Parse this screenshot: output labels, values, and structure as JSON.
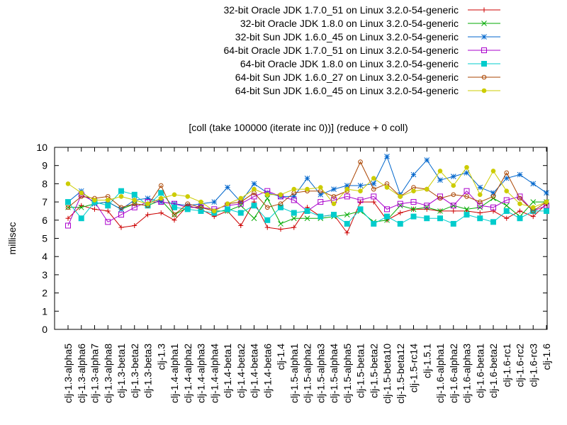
{
  "chart_data": {
    "type": "line",
    "title": "[coll (take 100000 (iterate inc 0))] (reduce + 0 coll)",
    "xlabel": "",
    "ylabel": "millisec",
    "ylim": [
      0,
      10
    ],
    "yticks": [
      "0",
      "1",
      "2",
      "3",
      "4",
      "5",
      "6",
      "7",
      "8",
      "9",
      "10"
    ],
    "grid": false,
    "legend_position": "top-right",
    "categories": [
      "clj-1.3-alpha5",
      "clj-1.3-alpha6",
      "clj-1.3-alpha7",
      "clj-1.3-alpha8",
      "clj-1.3-beta1",
      "clj-1.3-beta2",
      "clj-1.3-beta3",
      "clj-1.3",
      "clj-1.4-alpha1",
      "clj-1.4-alpha2",
      "clj-1.4-alpha3",
      "clj-1.4-alpha4",
      "clj-1.4-beta1",
      "clj-1.4-beta2",
      "clj-1.4-beta4",
      "clj-1.4-beta6",
      "clj-1.4",
      "clj-1.5-alpha1",
      "clj-1.5-alpha2",
      "clj-1.5-alpha3",
      "clj-1.5-alpha4",
      "clj-1.5-alpha5",
      "clj-1.5-beta1",
      "clj-1.5-beta2",
      "clj-1.5-beta10",
      "clj-1.5-beta12",
      "clj-1.5-rc14",
      "clj-1.5.1",
      "clj-1.6-alpha1",
      "clj-1.6-alpha2",
      "clj-1.6-alpha3",
      "clj-1.6-beta1",
      "clj-1.6-beta2",
      "clj-1.6-rc1",
      "clj-1.6-rc2",
      "clj-1.6-rc3",
      "clj-1.6"
    ],
    "series": [
      {
        "name": "32-bit Oracle JDK 1.7.0_51 on Linux 3.2.0-54-generic",
        "color": "#cc0000",
        "marker": "plus",
        "values": [
          6.1,
          6.8,
          6.6,
          6.5,
          5.6,
          5.7,
          6.3,
          6.4,
          6.0,
          6.8,
          6.6,
          6.2,
          6.5,
          5.7,
          7.0,
          5.6,
          5.5,
          5.6,
          6.7,
          6.2,
          6.3,
          5.3,
          7.0,
          7.0,
          6.0,
          6.4,
          6.6,
          6.6,
          6.5,
          6.5,
          6.5,
          6.4,
          6.5,
          6.1,
          6.5,
          6.2,
          6.9
        ]
      },
      {
        "name": "32-bit Oracle JDK 1.8.0 on Linux 3.2.0-54-generic",
        "color": "#00aa00",
        "marker": "cross",
        "values": [
          6.7,
          6.7,
          6.9,
          7.0,
          6.6,
          6.9,
          6.8,
          7.1,
          6.3,
          6.7,
          6.7,
          6.5,
          6.5,
          6.8,
          6.1,
          7.2,
          5.8,
          6.1,
          6.1,
          6.1,
          6.2,
          6.3,
          6.5,
          5.9,
          6.0,
          6.8,
          6.6,
          6.7,
          6.5,
          6.8,
          6.6,
          6.7,
          7.2,
          6.8,
          6.2,
          7.0,
          7.0
        ]
      },
      {
        "name": "32-bit Sun JDK 1.6.0_45 on Linux 3.2.0-54-generic",
        "color": "#0066cc",
        "marker": "star",
        "values": [
          7.0,
          7.6,
          6.9,
          7.0,
          6.6,
          7.1,
          7.2,
          7.0,
          6.9,
          6.8,
          6.9,
          7.0,
          7.8,
          7.0,
          8.0,
          7.5,
          7.3,
          7.3,
          8.3,
          7.4,
          7.7,
          7.9,
          7.9,
          8.0,
          9.5,
          7.4,
          8.5,
          9.3,
          8.2,
          8.4,
          8.6,
          7.8,
          7.5,
          8.3,
          8.5,
          8.0,
          7.5
        ]
      },
      {
        "name": "64-bit Oracle JDK 1.7.0_51 on Linux 3.2.0-54-generic",
        "color": "#aa00cc",
        "marker": "square",
        "values": [
          5.7,
          7.4,
          7.0,
          5.9,
          6.3,
          6.7,
          7.0,
          7.0,
          6.9,
          6.7,
          6.7,
          6.6,
          6.8,
          6.9,
          7.3,
          7.6,
          7.3,
          7.1,
          6.5,
          7.0,
          7.1,
          7.3,
          7.1,
          7.3,
          6.6,
          6.9,
          7.0,
          6.8,
          7.3,
          6.8,
          7.6,
          6.8,
          6.7,
          7.1,
          7.3,
          6.5,
          6.8
        ]
      },
      {
        "name": "64-bit Oracle JDK 1.8.0 on Linux 3.2.0-54-generic",
        "color": "#00cccc",
        "marker": "filled-square",
        "values": [
          7.0,
          6.1,
          7.0,
          6.8,
          7.6,
          7.4,
          6.8,
          7.5,
          6.7,
          6.6,
          6.5,
          6.4,
          6.6,
          6.4,
          6.8,
          6.0,
          6.7,
          6.4,
          6.5,
          6.2,
          6.3,
          5.8,
          6.6,
          5.8,
          6.2,
          5.8,
          6.2,
          6.1,
          6.1,
          5.8,
          6.3,
          6.1,
          5.9,
          6.5,
          6.1,
          6.5,
          6.5
        ]
      },
      {
        "name": "64-bit Sun JDK 1.6.0_27 on Linux 3.2.0-54-generic",
        "color": "#aa4400",
        "marker": "circle",
        "values": [
          6.7,
          7.3,
          7.2,
          7.3,
          6.7,
          6.9,
          6.8,
          7.9,
          6.3,
          6.9,
          6.7,
          6.5,
          6.9,
          7.0,
          7.5,
          6.7,
          6.9,
          7.5,
          7.6,
          7.6,
          7.3,
          7.6,
          9.2,
          7.7,
          8.0,
          7.3,
          7.8,
          7.7,
          7.2,
          7.4,
          7.3,
          7.0,
          7.3,
          8.6,
          7.2,
          6.5,
          7.0
        ]
      },
      {
        "name": "64-bit Sun JDK 1.6.0_45 on Linux 3.2.0-54-generic",
        "color": "#cccc00",
        "marker": "filled-circle",
        "values": [
          8.0,
          7.5,
          7.1,
          7.1,
          7.3,
          7.1,
          6.9,
          7.2,
          7.4,
          7.3,
          7.0,
          6.5,
          6.9,
          7.2,
          7.7,
          7.4,
          7.4,
          7.7,
          7.7,
          7.8,
          6.9,
          7.7,
          7.6,
          8.3,
          7.8,
          7.3,
          7.6,
          7.7,
          8.7,
          7.9,
          8.9,
          7.4,
          8.7,
          7.6,
          6.9,
          6.7,
          7.0
        ]
      }
    ]
  }
}
